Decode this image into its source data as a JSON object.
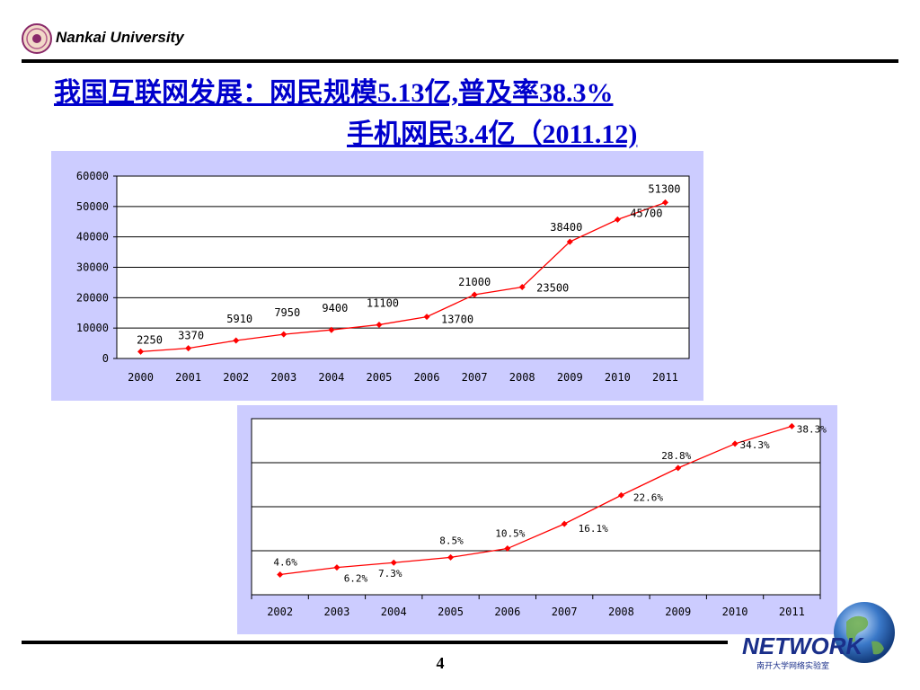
{
  "header": {
    "org_name": "Nankai University",
    "title_line_1": "我国互联网发展：网民规模5.13亿,普及率38.3%",
    "title_line_2": "手机网民3.4亿（2011.12)"
  },
  "footer": {
    "page_number": "4",
    "logo_text": "NETWORK",
    "logo_subtitle": "南开大学网络实验室"
  },
  "colors": {
    "title": "#0000cc",
    "series": "#ff0000",
    "panel": "#ccccff",
    "plot": "#ffffff"
  },
  "chart_data": [
    {
      "type": "line",
      "x": [
        "2000",
        "2001",
        "2002",
        "2003",
        "2004",
        "2005",
        "2006",
        "2007",
        "2008",
        "2009",
        "2010",
        "2011"
      ],
      "series": [
        {
          "values": [
            2250,
            3370,
            5910,
            7950,
            9400,
            11100,
            13700,
            21000,
            23500,
            38400,
            45700,
            51300
          ]
        }
      ],
      "data_labels": [
        "2250",
        "3370",
        "5910",
        "7950",
        "9400",
        "11100",
        "13700",
        "21000",
        "23500",
        "38400",
        "45700",
        "51300"
      ],
      "yticks": [
        "0",
        "10000",
        "20000",
        "30000",
        "40000",
        "50000",
        "60000"
      ],
      "ylim": [
        0,
        60000
      ],
      "grid": true,
      "title": "",
      "xlabel": "",
      "ylabel": ""
    },
    {
      "type": "line",
      "x": [
        "2002",
        "2003",
        "2004",
        "2005",
        "2006",
        "2007",
        "2008",
        "2009",
        "2010",
        "2011"
      ],
      "series": [
        {
          "values": [
            4.6,
            6.2,
            7.3,
            8.5,
            10.5,
            16.1,
            22.6,
            28.8,
            34.3,
            38.3
          ]
        }
      ],
      "data_labels": [
        "4.6%",
        "6.2%",
        "7.3%",
        "8.5%",
        "10.5%",
        "16.1%",
        "22.6%",
        "28.8%",
        "34.3%",
        "38.3%"
      ],
      "ylim": [
        0,
        40
      ],
      "grid": true,
      "title": "",
      "xlabel": "",
      "ylabel": ""
    }
  ]
}
